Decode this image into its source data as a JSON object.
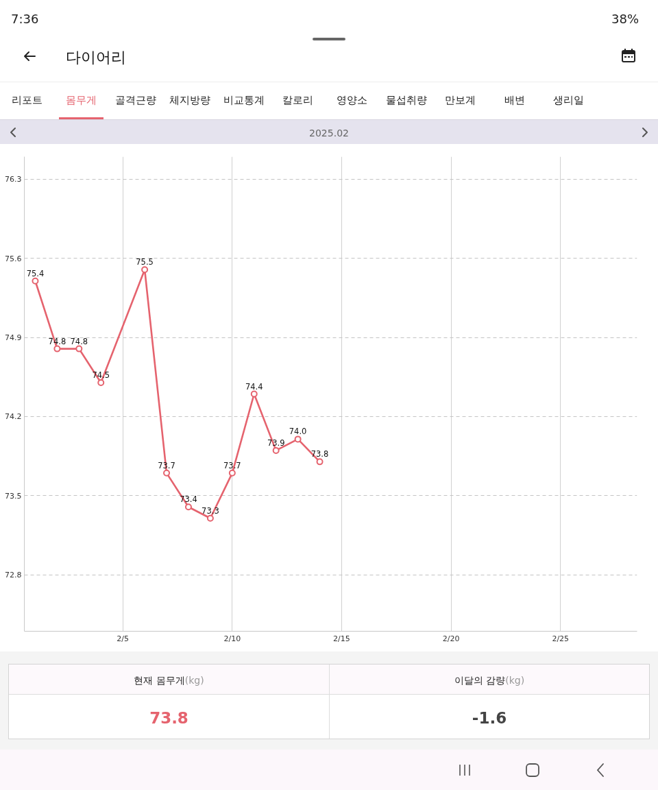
{
  "chart_data": {
    "type": "line",
    "title": "다이어리",
    "subtitle": "2025.02",
    "annotations": [
      "7:36",
      "38%",
      "리포트",
      "몸무게",
      "골격근량",
      "체지방량",
      "비교통계",
      "칼로리",
      "영양소",
      "물섭취량",
      "만보계",
      "배변",
      "생리일",
      "현재 몸무게",
      "(kg)",
      "73.8",
      "이달의 감량",
      "(kg)",
      "-1.6"
    ],
    "x": [
      "2025-02-01",
      "2025-02-02",
      "2025-02-03",
      "2025-02-04",
      "2025-02-06",
      "2025-02-07",
      "2025-02-08",
      "2025-02-09",
      "2025-02-10",
      "2025-02-11",
      "2025-02-12",
      "2025-02-13",
      "2025-02-14"
    ],
    "series": [
      {
        "color": "#e5636e",
        "values": [
          75.4,
          74.8,
          74.8,
          74.5,
          75.5,
          73.7,
          73.4,
          73.3,
          73.7,
          74.4,
          73.9,
          74.0,
          73.8
        ],
        "value_labels": [
          "75.4",
          "74.8",
          "74.8",
          "74.5",
          "75.5",
          "73.7",
          "73.4",
          "73.3",
          "73.7",
          "74.4",
          "73.9",
          "74.0",
          "73.8"
        ]
      }
    ],
    "xlim": [
      "2025-01-31T12:00",
      "2025-02-28T12:00"
    ],
    "xticks": [
      {
        "value": "2025-02-05",
        "label": "2/5"
      },
      {
        "value": "2025-02-10",
        "label": "2/10"
      },
      {
        "value": "2025-02-15",
        "label": "2/15"
      },
      {
        "value": "2025-02-20",
        "label": "2/20"
      },
      {
        "value": "2025-02-25",
        "label": "2/25"
      }
    ],
    "ylim": [
      72.3,
      76.5
    ],
    "yticks": [
      72.8,
      73.5,
      74.2,
      74.9,
      75.6,
      76.3
    ],
    "grid": true,
    "marker": "circle",
    "line_style": "solid"
  }
}
